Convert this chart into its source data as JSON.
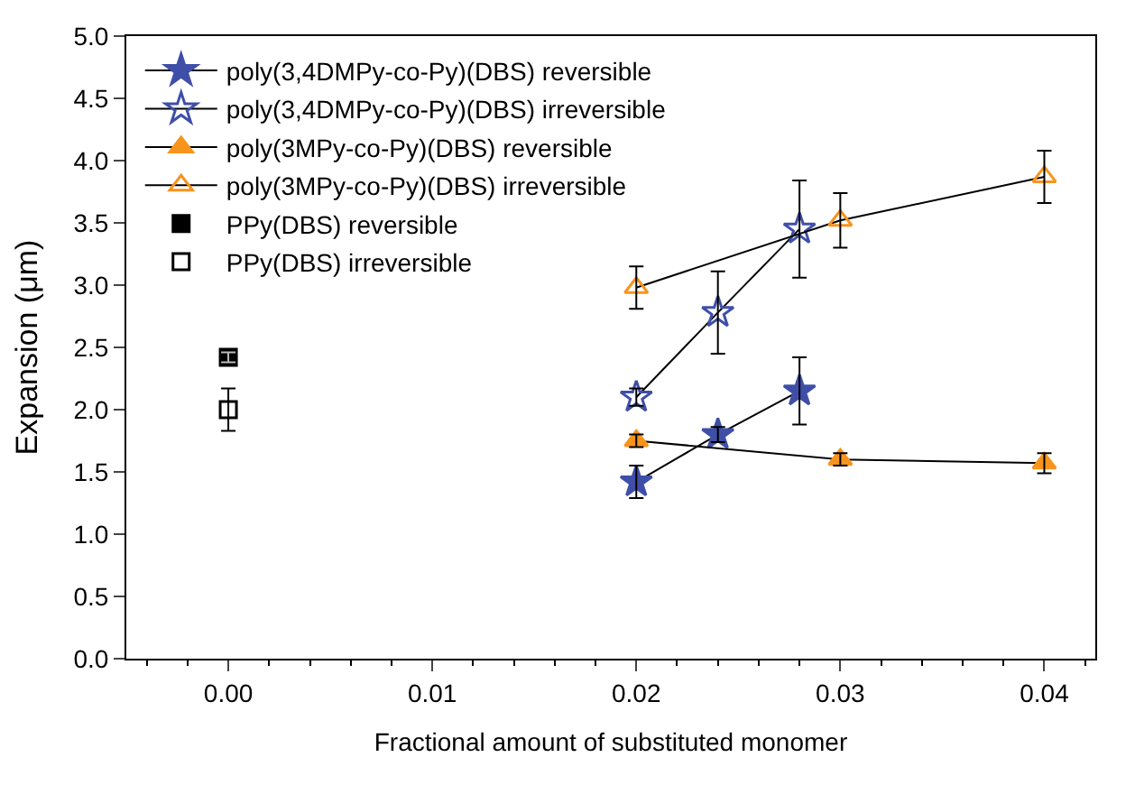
{
  "chart_data": {
    "type": "line",
    "xlabel": "Fractional amount of substituted monomer",
    "ylabel": "Expansion (μm)",
    "xlim": [
      -0.005,
      0.0425
    ],
    "xticks": [
      {
        "value": 0,
        "label": "0.00"
      },
      {
        "value": 0.01,
        "label": "0.01"
      },
      {
        "value": 0.02,
        "label": "0.02"
      },
      {
        "value": 0.03,
        "label": "0.03"
      },
      {
        "value": 0.04,
        "label": "0.04"
      }
    ],
    "ylim": [
      0,
      5
    ],
    "yticks": [
      {
        "value": 0,
        "label": "0.0"
      },
      {
        "value": 0.5,
        "label": "0.5"
      },
      {
        "value": 1,
        "label": "1.0"
      },
      {
        "value": 1.5,
        "label": "1.5"
      },
      {
        "value": 2,
        "label": "2.0"
      },
      {
        "value": 2.5,
        "label": "2.5"
      },
      {
        "value": 3,
        "label": "3.0"
      },
      {
        "value": 3.5,
        "label": "3.5"
      },
      {
        "value": 4,
        "label": "4.0"
      },
      {
        "value": 4.5,
        "label": "4.5"
      },
      {
        "value": 5,
        "label": "5.0"
      }
    ],
    "legend": "top left",
    "series": [
      {
        "name": "poly(3,4DMPy-co-Py)(DBS) reversible",
        "marker": "star",
        "color": "#3f4fa8",
        "x": [
          0.02,
          0.024,
          0.028
        ],
        "values": [
          1.42,
          1.8,
          2.15
        ],
        "errors": [
          0.13,
          0.06,
          0.27
        ]
      },
      {
        "name": "poly(3,4DMPy-co-Py)(DBS) irreversible",
        "marker": "star-open",
        "color": "#3f4fa8",
        "x": [
          0.02,
          0.024,
          0.028
        ],
        "values": [
          2.1,
          2.78,
          3.45
        ],
        "errors": [
          0.07,
          0.33,
          0.39
        ]
      },
      {
        "name": "poly(3MPy-co-Py)(DBS) reversible",
        "marker": "triangle",
        "color": "#f7941d",
        "x": [
          0.02,
          0.03,
          0.04
        ],
        "values": [
          1.75,
          1.6,
          1.57
        ],
        "errors": [
          0.05,
          0.05,
          0.08
        ]
      },
      {
        "name": "poly(3MPy-co-Py)(DBS) irreversible",
        "marker": "triangle-open",
        "color": "#f7941d",
        "x": [
          0.02,
          0.03,
          0.04
        ],
        "values": [
          2.98,
          3.52,
          3.87
        ],
        "errors": [
          0.17,
          0.22,
          0.21
        ]
      },
      {
        "name": "PPy(DBS) reversible",
        "type": "scatter",
        "marker": "square",
        "color": "#000000",
        "x": [
          0.0
        ],
        "values": [
          2.42
        ],
        "errors": [
          0.04
        ]
      },
      {
        "name": "PPy(DBS) irreversible",
        "type": "scatter",
        "marker": "square-open",
        "color": "#000000",
        "x": [
          0.0
        ],
        "values": [
          2.0
        ],
        "errors": [
          0.17
        ]
      }
    ]
  }
}
